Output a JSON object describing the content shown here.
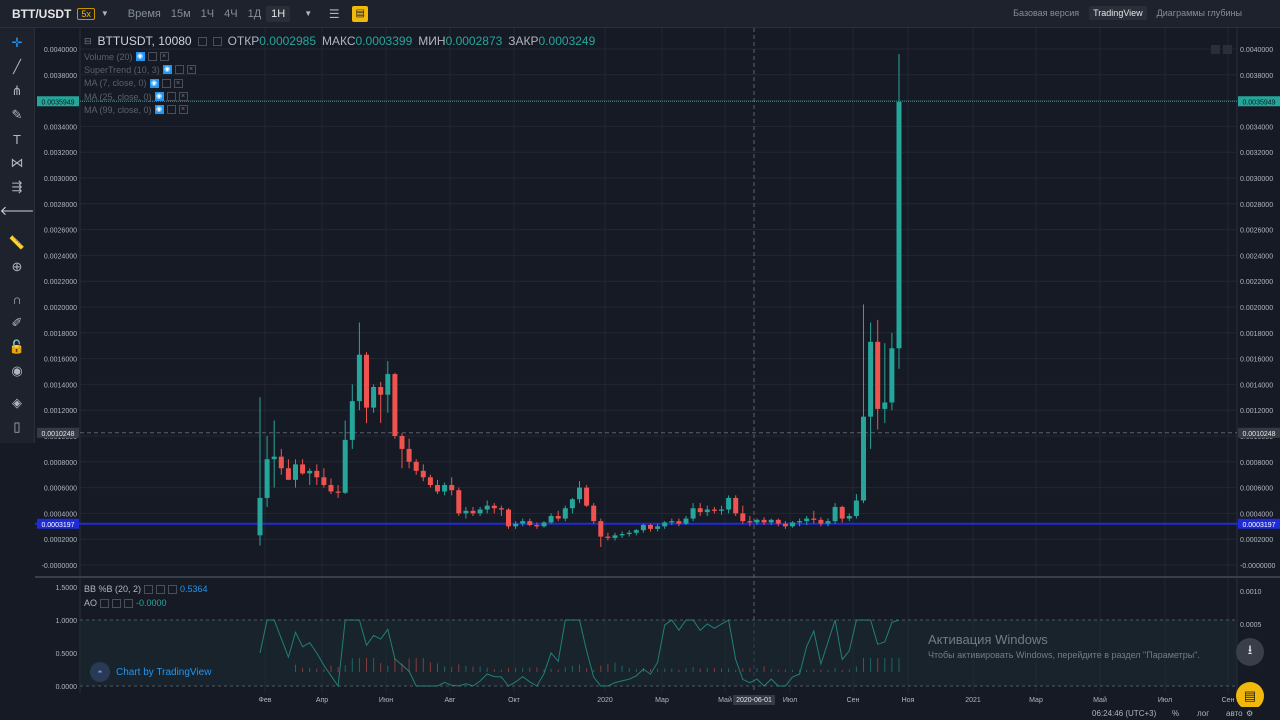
{
  "topbar": {
    "symbol": "BTT/USDT",
    "leverage": "5x",
    "time_label": "Время",
    "intervals": [
      "15м",
      "1Ч",
      "4Ч",
      "1Д",
      "1Н"
    ],
    "active_interval": "1Н",
    "views": [
      "Базовая версия",
      "TradingView",
      "Диаграммы глубины"
    ],
    "active_view": "TradingView"
  },
  "sidebar_tools": [
    "crosshair-icon",
    "trend-line-icon",
    "pitchfork-icon",
    "brush-icon",
    "text-icon",
    "pattern-icon",
    "prediction-icon",
    "back-arrow-icon",
    "ruler-icon",
    "zoom-in-icon",
    "magnet-icon",
    "lock-drawing-icon",
    "unlock-icon",
    "eye-icon",
    "layers-icon",
    "trash-icon"
  ],
  "legend": {
    "symbol_interval": "BTTUSDT, 10080",
    "open_label": "ОТКР",
    "open_value": "0.0002985",
    "high_label": "МАКС",
    "high_value": "0.0003399",
    "low_label": "МИН",
    "low_value": "0.0002873",
    "close_label": "ЗАКР",
    "close_value": "0.0003249"
  },
  "indicators": [
    "Volume (20)",
    "SuperTrend (10, 3)",
    "MA (7, close, 0)",
    "MA (25, close, 0)",
    "MA (99, close, 0)"
  ],
  "price_axis": {
    "labels": [
      "0.0040000",
      "0.0038000",
      "0.0036000",
      "0.0034000",
      "0.0032000",
      "0.0030000",
      "0.0028000",
      "0.0026000",
      "0.0024000",
      "0.0022000",
      "0.0020000",
      "0.0018000",
      "0.0016000",
      "0.0014000",
      "0.0012000",
      "0.0010000",
      "0.0008000",
      "0.0006000",
      "0.0004000",
      "0.0002000",
      "-0.0000000"
    ],
    "current_price_tag": "0.0035949",
    "crosshair_price_tag": "0.0010248",
    "blue_line_tag": "0.0003197"
  },
  "sub_pane": {
    "bb_label": "BB %B (20, 2)",
    "bb_value": "0.5364",
    "ao_label": "AO",
    "ao_value": "-0.0000",
    "left_labels": [
      "1.5000",
      "1.0000",
      "0.5000",
      "0.0000"
    ],
    "right_labels": [
      "0.0010",
      "0.0005",
      "0.0000"
    ]
  },
  "time_axis": {
    "labels": [
      "Фев",
      "Апр",
      "Июн",
      "Авг",
      "Окт",
      "2020",
      "Мар",
      "Май",
      "Июл",
      "Сен",
      "Ноя",
      "2021",
      "Мар",
      "Май",
      "Июл",
      "Сен"
    ],
    "crosshair_date": "2020-06-01"
  },
  "branding": {
    "tv_logo_text": "Chart by TradingView"
  },
  "watermark": {
    "title": "Активация Windows",
    "subtitle": "Чтобы активировать Windows, перейдите в раздел \"Параметры\"."
  },
  "bottombar": {
    "time": "06:24:46 (UTC+3)",
    "percent": "%",
    "log": "лог",
    "auto": "авто"
  },
  "colors": {
    "up": "#26a69a",
    "down": "#ef5350",
    "blue_line": "#1e2bd8",
    "accent": "#f0b90b"
  },
  "chart_data": {
    "type": "candlestick",
    "interval": "1W",
    "y_range": [
      -0.0,
      0.004
    ],
    "candles": [
      {
        "o": 0.00023,
        "h": 0.0013,
        "l": 0.00015,
        "c": 0.00052
      },
      {
        "o": 0.00052,
        "h": 0.001,
        "l": 0.00045,
        "c": 0.00082
      },
      {
        "o": 0.00082,
        "h": 0.00112,
        "l": 0.0006,
        "c": 0.00084
      },
      {
        "o": 0.00084,
        "h": 0.0009,
        "l": 0.0007,
        "c": 0.00075
      },
      {
        "o": 0.00075,
        "h": 0.00082,
        "l": 0.00068,
        "c": 0.00066
      },
      {
        "o": 0.00066,
        "h": 0.00082,
        "l": 0.0006,
        "c": 0.00078
      },
      {
        "o": 0.00078,
        "h": 0.00082,
        "l": 0.0007,
        "c": 0.00071
      },
      {
        "o": 0.00071,
        "h": 0.00075,
        "l": 0.00062,
        "c": 0.00073
      },
      {
        "o": 0.00073,
        "h": 0.00078,
        "l": 0.00062,
        "c": 0.00068
      },
      {
        "o": 0.00068,
        "h": 0.00075,
        "l": 0.0006,
        "c": 0.00062
      },
      {
        "o": 0.00062,
        "h": 0.00067,
        "l": 0.00055,
        "c": 0.00057
      },
      {
        "o": 0.00057,
        "h": 0.00062,
        "l": 0.00052,
        "c": 0.00056
      },
      {
        "o": 0.00056,
        "h": 0.00112,
        "l": 0.00055,
        "c": 0.00097
      },
      {
        "o": 0.00097,
        "h": 0.0014,
        "l": 0.0009,
        "c": 0.00127
      },
      {
        "o": 0.00127,
        "h": 0.00188,
        "l": 0.0012,
        "c": 0.00163
      },
      {
        "o": 0.00163,
        "h": 0.00165,
        "l": 0.0011,
        "c": 0.00122
      },
      {
        "o": 0.00122,
        "h": 0.0014,
        "l": 0.00118,
        "c": 0.00138
      },
      {
        "o": 0.00138,
        "h": 0.00142,
        "l": 0.0011,
        "c": 0.00132
      },
      {
        "o": 0.00132,
        "h": 0.00158,
        "l": 0.00118,
        "c": 0.00148
      },
      {
        "o": 0.00148,
        "h": 0.00149,
        "l": 0.00098,
        "c": 0.001
      },
      {
        "o": 0.001,
        "h": 0.00102,
        "l": 0.00075,
        "c": 0.0009
      },
      {
        "o": 0.0009,
        "h": 0.00098,
        "l": 0.00075,
        "c": 0.0008
      },
      {
        "o": 0.0008,
        "h": 0.00082,
        "l": 0.0007,
        "c": 0.00073
      },
      {
        "o": 0.00073,
        "h": 0.00078,
        "l": 0.00065,
        "c": 0.00068
      },
      {
        "o": 0.00068,
        "h": 0.0007,
        "l": 0.0006,
        "c": 0.00062
      },
      {
        "o": 0.00062,
        "h": 0.00066,
        "l": 0.00055,
        "c": 0.00057
      },
      {
        "o": 0.00057,
        "h": 0.00064,
        "l": 0.00054,
        "c": 0.00062
      },
      {
        "o": 0.00062,
        "h": 0.00068,
        "l": 0.00054,
        "c": 0.00058
      },
      {
        "o": 0.00058,
        "h": 0.0006,
        "l": 0.00038,
        "c": 0.0004
      },
      {
        "o": 0.0004,
        "h": 0.00045,
        "l": 0.00036,
        "c": 0.00042
      },
      {
        "o": 0.00042,
        "h": 0.00045,
        "l": 0.00038,
        "c": 0.0004
      },
      {
        "o": 0.0004,
        "h": 0.00045,
        "l": 0.00038,
        "c": 0.00043
      },
      {
        "o": 0.00043,
        "h": 0.0005,
        "l": 0.0004,
        "c": 0.00046
      },
      {
        "o": 0.00046,
        "h": 0.00048,
        "l": 0.0004,
        "c": 0.00044
      },
      {
        "o": 0.00044,
        "h": 0.00046,
        "l": 0.00038,
        "c": 0.00043
      },
      {
        "o": 0.00043,
        "h": 0.00044,
        "l": 0.00028,
        "c": 0.0003
      },
      {
        "o": 0.0003,
        "h": 0.00034,
        "l": 0.00028,
        "c": 0.00032
      },
      {
        "o": 0.00032,
        "h": 0.00036,
        "l": 0.0003,
        "c": 0.00034
      },
      {
        "o": 0.00034,
        "h": 0.00036,
        "l": 0.0003,
        "c": 0.00031
      },
      {
        "o": 0.00031,
        "h": 0.00033,
        "l": 0.00028,
        "c": 0.0003
      },
      {
        "o": 0.0003,
        "h": 0.00034,
        "l": 0.00029,
        "c": 0.00033
      },
      {
        "o": 0.00033,
        "h": 0.0004,
        "l": 0.00032,
        "c": 0.00038
      },
      {
        "o": 0.00038,
        "h": 0.00042,
        "l": 0.00034,
        "c": 0.00036
      },
      {
        "o": 0.00036,
        "h": 0.00046,
        "l": 0.00034,
        "c": 0.00044
      },
      {
        "o": 0.00044,
        "h": 0.00052,
        "l": 0.0004,
        "c": 0.00051
      },
      {
        "o": 0.00051,
        "h": 0.00065,
        "l": 0.00048,
        "c": 0.0006
      },
      {
        "o": 0.0006,
        "h": 0.00062,
        "l": 0.00045,
        "c": 0.00046
      },
      {
        "o": 0.00046,
        "h": 0.00048,
        "l": 0.00032,
        "c": 0.00034
      },
      {
        "o": 0.00034,
        "h": 0.00036,
        "l": 0.00014,
        "c": 0.00022
      },
      {
        "o": 0.00022,
        "h": 0.00025,
        "l": 0.00019,
        "c": 0.00021
      },
      {
        "o": 0.00021,
        "h": 0.00025,
        "l": 0.00019,
        "c": 0.00023
      },
      {
        "o": 0.00023,
        "h": 0.00026,
        "l": 0.00021,
        "c": 0.00024
      },
      {
        "o": 0.00024,
        "h": 0.00027,
        "l": 0.00022,
        "c": 0.00025
      },
      {
        "o": 0.00025,
        "h": 0.00028,
        "l": 0.00023,
        "c": 0.00027
      },
      {
        "o": 0.00027,
        "h": 0.00032,
        "l": 0.00025,
        "c": 0.00031
      },
      {
        "o": 0.00031,
        "h": 0.00032,
        "l": 0.00026,
        "c": 0.00028
      },
      {
        "o": 0.00028,
        "h": 0.00032,
        "l": 0.00026,
        "c": 0.0003
      },
      {
        "o": 0.0003,
        "h": 0.00034,
        "l": 0.00028,
        "c": 0.00033
      },
      {
        "o": 0.00033,
        "h": 0.00036,
        "l": 0.00031,
        "c": 0.00034
      },
      {
        "o": 0.00034,
        "h": 0.00036,
        "l": 0.0003,
        "c": 0.00032
      },
      {
        "o": 0.00032,
        "h": 0.00038,
        "l": 0.00031,
        "c": 0.00036
      },
      {
        "o": 0.00036,
        "h": 0.00048,
        "l": 0.00034,
        "c": 0.00044
      },
      {
        "o": 0.00044,
        "h": 0.00048,
        "l": 0.00038,
        "c": 0.00041
      },
      {
        "o": 0.00041,
        "h": 0.00046,
        "l": 0.00038,
        "c": 0.00043
      },
      {
        "o": 0.00043,
        "h": 0.00045,
        "l": 0.0004,
        "c": 0.00042
      },
      {
        "o": 0.00042,
        "h": 0.00046,
        "l": 0.00039,
        "c": 0.00043
      },
      {
        "o": 0.00043,
        "h": 0.00054,
        "l": 0.0004,
        "c": 0.00052
      },
      {
        "o": 0.00052,
        "h": 0.00054,
        "l": 0.00038,
        "c": 0.0004
      },
      {
        "o": 0.0004,
        "h": 0.00046,
        "l": 0.00032,
        "c": 0.00034
      },
      {
        "o": 0.00034,
        "h": 0.00038,
        "l": 0.0003,
        "c": 0.00033
      },
      {
        "o": 0.00033,
        "h": 0.00036,
        "l": 0.00031,
        "c": 0.00035
      },
      {
        "o": 0.00035,
        "h": 0.00037,
        "l": 0.00031,
        "c": 0.00033
      },
      {
        "o": 0.00033,
        "h": 0.00036,
        "l": 0.00031,
        "c": 0.00035
      },
      {
        "o": 0.00035,
        "h": 0.00036,
        "l": 0.0003,
        "c": 0.00032
      },
      {
        "o": 0.00032,
        "h": 0.00034,
        "l": 0.00028,
        "c": 0.0003
      },
      {
        "o": 0.0003,
        "h": 0.00034,
        "l": 0.00029,
        "c": 0.00033
      },
      {
        "o": 0.00033,
        "h": 0.00036,
        "l": 0.0003,
        "c": 0.00034
      },
      {
        "o": 0.00034,
        "h": 0.00038,
        "l": 0.00031,
        "c": 0.00036
      },
      {
        "o": 0.00036,
        "h": 0.00042,
        "l": 0.00032,
        "c": 0.00035
      },
      {
        "o": 0.00035,
        "h": 0.00037,
        "l": 0.0003,
        "c": 0.00032
      },
      {
        "o": 0.00032,
        "h": 0.00036,
        "l": 0.0003,
        "c": 0.00034
      },
      {
        "o": 0.00034,
        "h": 0.00048,
        "l": 0.00032,
        "c": 0.00045
      },
      {
        "o": 0.00045,
        "h": 0.00046,
        "l": 0.00033,
        "c": 0.00036
      },
      {
        "o": 0.00036,
        "h": 0.0004,
        "l": 0.00034,
        "c": 0.00038
      },
      {
        "o": 0.00038,
        "h": 0.00055,
        "l": 0.00036,
        "c": 0.0005
      },
      {
        "o": 0.0005,
        "h": 0.00202,
        "l": 0.00048,
        "c": 0.00115
      },
      {
        "o": 0.00115,
        "h": 0.00188,
        "l": 0.0009,
        "c": 0.00173
      },
      {
        "o": 0.00173,
        "h": 0.0019,
        "l": 0.00105,
        "c": 0.00121
      },
      {
        "o": 0.00121,
        "h": 0.00172,
        "l": 0.0011,
        "c": 0.00126
      },
      {
        "o": 0.00126,
        "h": 0.0018,
        "l": 0.0012,
        "c": 0.00168
      },
      {
        "o": 0.00168,
        "h": 0.00396,
        "l": 0.00152,
        "c": 0.00359
      }
    ]
  }
}
